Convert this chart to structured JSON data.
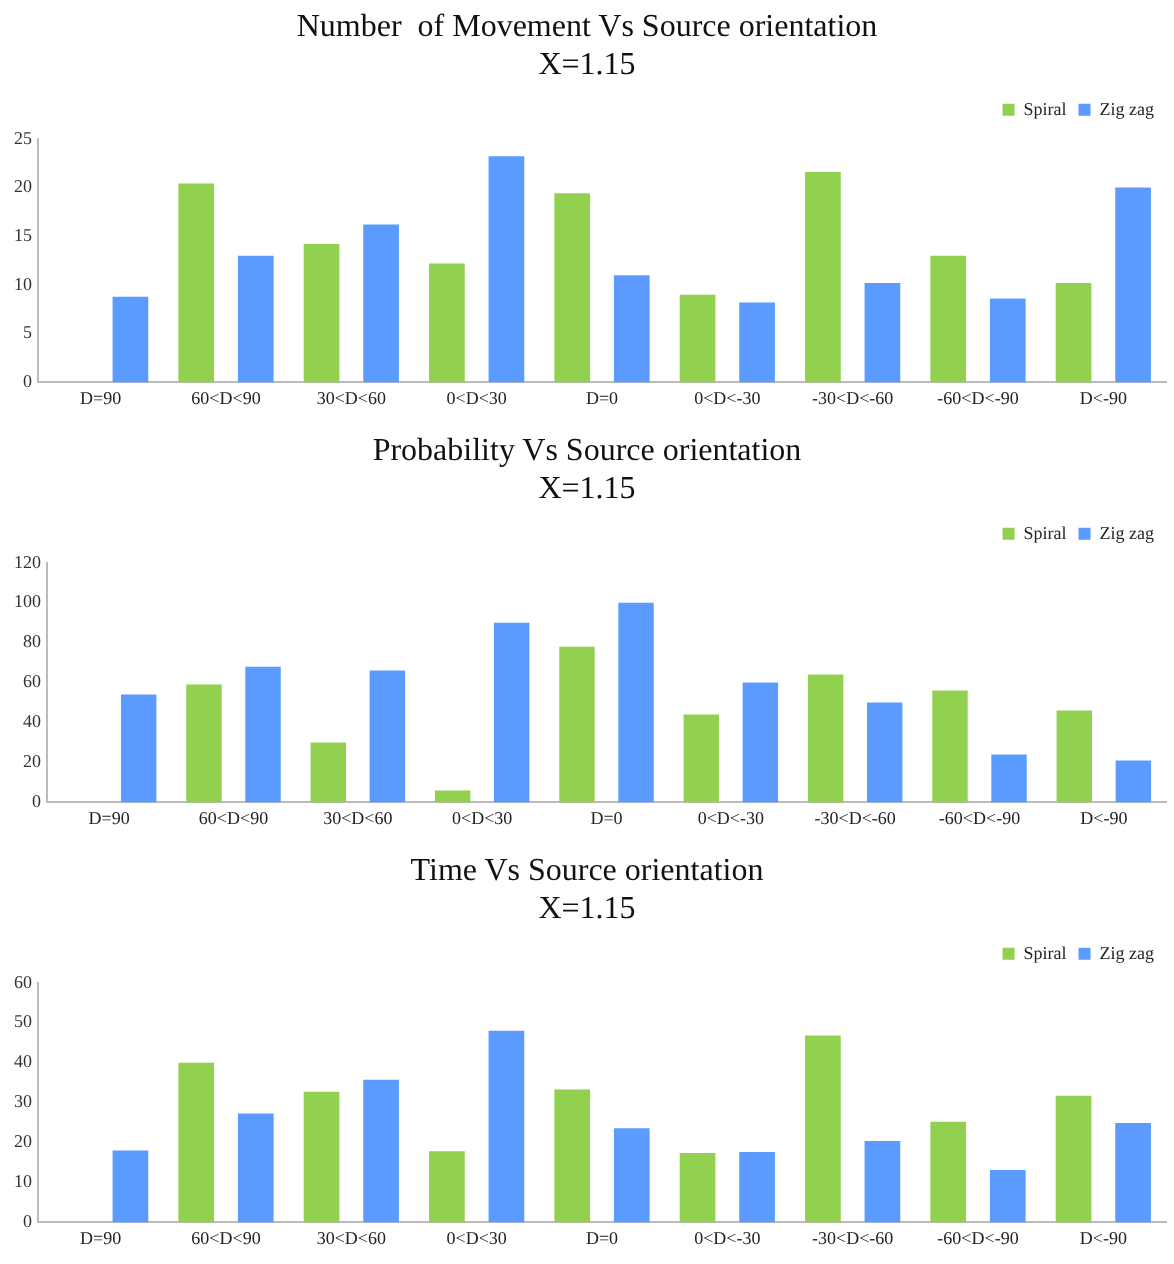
{
  "chart_data": [
    {
      "type": "bar",
      "title": "Number  of Movement Vs Source orientation",
      "subtitle": "X=1.15",
      "categories": [
        "D=90",
        "60<D<90",
        "30<D<60",
        "0<D<30",
        "D=0",
        "0<D<-30",
        "-30<D<-60",
        "-60<D<-90",
        "D<-90"
      ],
      "series": [
        {
          "name": "Spiral",
          "color": "#92d050",
          "values": [
            0,
            20.4,
            14.2,
            12.2,
            19.4,
            9,
            21.6,
            13,
            10.2
          ]
        },
        {
          "name": "Zig zag",
          "color": "#5b9bff",
          "values": [
            8.8,
            13,
            16.2,
            23.2,
            11,
            8.2,
            10.2,
            8.6,
            20
          ]
        }
      ],
      "ylim": [
        0,
        25
      ],
      "yticks": [
        0,
        5,
        10,
        15,
        20,
        25
      ],
      "grid": false,
      "legend": "top right"
    },
    {
      "type": "bar",
      "title": "Probability Vs Source orientation",
      "subtitle": "X=1.15",
      "categories": [
        "D=90",
        "60<D<90",
        "30<D<60",
        "0<D<30",
        "D=0",
        "0<D<-30",
        "-30<D<-60",
        "-60<D<-90",
        "D<-90"
      ],
      "series": [
        {
          "name": "Spiral",
          "color": "#92d050",
          "values": [
            0,
            59,
            30,
            6,
            78,
            44,
            64,
            56,
            46
          ]
        },
        {
          "name": "Zig zag",
          "color": "#5b9bff",
          "values": [
            54,
            68,
            66,
            90,
            100,
            60,
            50,
            24,
            21
          ]
        }
      ],
      "ylim": [
        0,
        120
      ],
      "yticks": [
        0,
        20,
        40,
        60,
        80,
        100,
        120
      ],
      "grid": false,
      "legend": "top right"
    },
    {
      "type": "bar",
      "title": "Time Vs Source orientation",
      "subtitle": "X=1.15",
      "categories": [
        "D=90",
        "60<D<90",
        "30<D<60",
        "0<D<30",
        "D=0",
        "0<D<-30",
        "-30<D<-60",
        "-60<D<-90",
        "D<-90"
      ],
      "series": [
        {
          "name": "Spiral",
          "color": "#92d050",
          "values": [
            0,
            40,
            32.7,
            17.8,
            33.3,
            17.4,
            46.8,
            25.2,
            31.7
          ]
        },
        {
          "name": "Zig zag",
          "color": "#5b9bff",
          "values": [
            18,
            27.3,
            35.7,
            48,
            23.6,
            17.6,
            20.4,
            13.1,
            24.9
          ]
        }
      ],
      "ylim": [
        0,
        60
      ],
      "yticks": [
        0,
        10,
        20,
        30,
        40,
        50,
        60
      ],
      "grid": false,
      "legend": "top right"
    }
  ]
}
